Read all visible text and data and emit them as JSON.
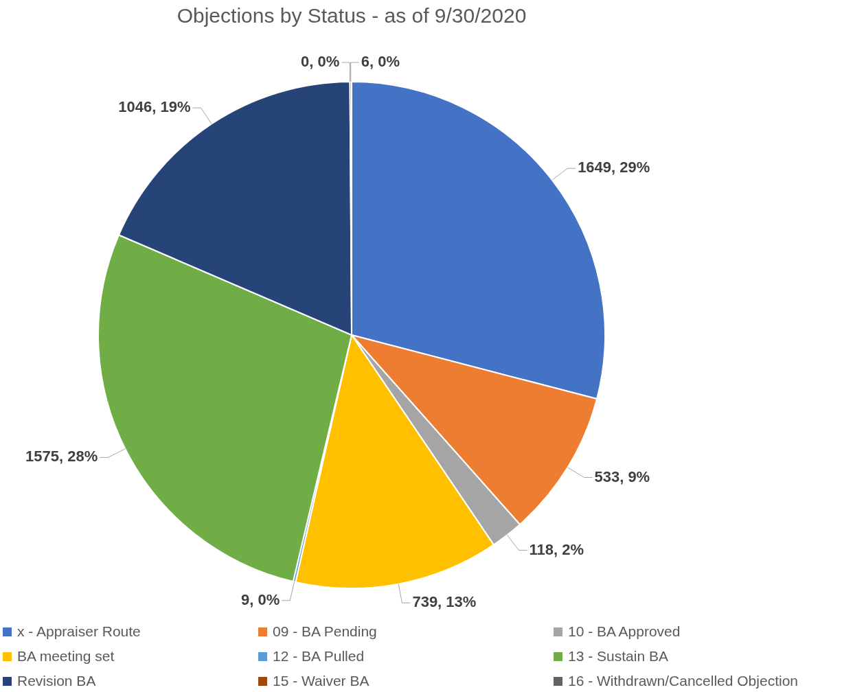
{
  "chart_data": {
    "type": "pie",
    "title": "Objections by Status - as of 9/30/2020",
    "categories": [
      "x - Appraiser Route",
      "09 - BA Pending",
      "10 - BA Approved",
      "BA meeting set",
      "12 - BA Pulled",
      "13 - Sustain BA",
      "Revision BA",
      "15 - Waiver BA",
      "16 - Withdrawn/Cancelled Objection"
    ],
    "values": [
      1649,
      533,
      118,
      739,
      9,
      1575,
      1046,
      0,
      6
    ],
    "colors": [
      "#4472c4",
      "#ed7d31",
      "#a5a5a5",
      "#ffc000",
      "#5b9bd5",
      "#70ad47",
      "#264478",
      "#9e480e",
      "#636363"
    ],
    "value_labels": [
      "1649, 29%",
      "533, 9%",
      "118, 2%",
      "739, 13%",
      "9, 0%",
      "1575, 28%",
      "1046, 19%",
      "0, 0%",
      "6, 0%"
    ],
    "legend": "bottom"
  }
}
